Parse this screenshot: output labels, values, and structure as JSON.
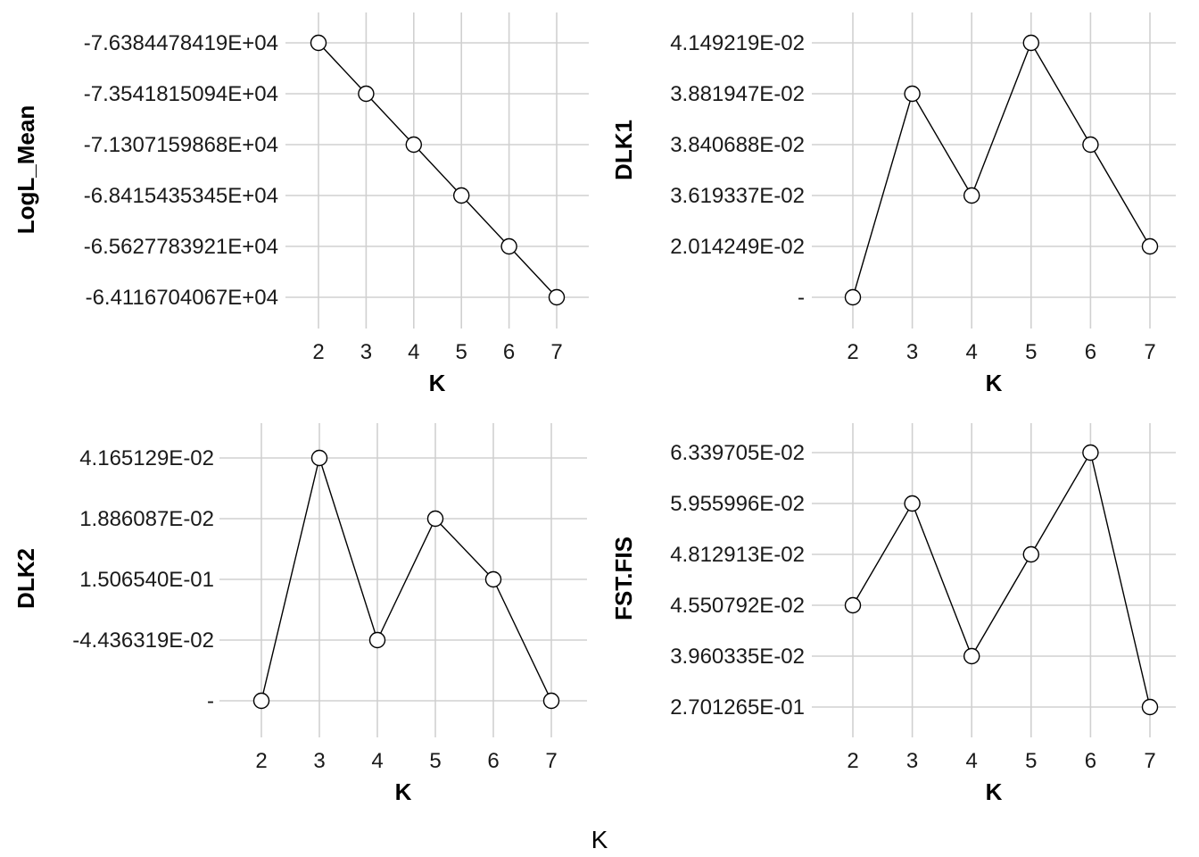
{
  "global_xlabel": "K",
  "chart_data": [
    {
      "type": "line",
      "xlabel": "K",
      "ylabel": "LogL_Mean",
      "x": [
        2,
        3,
        4,
        5,
        6,
        7
      ],
      "y_ticks": [
        "-7.6384478419E+04",
        "-7.3541815094E+04",
        "-7.1307159868E+04",
        "-6.8415435345E+04",
        "-6.5627783921E+04",
        "-6.4116704067E+04"
      ],
      "y_index": [
        0,
        1,
        2,
        3,
        4,
        5
      ]
    },
    {
      "type": "line",
      "xlabel": "K",
      "ylabel": "DLK1",
      "x": [
        2,
        3,
        4,
        5,
        6,
        7
      ],
      "y_ticks": [
        "4.149219E-02",
        "3.881947E-02",
        "3.840688E-02",
        "3.619337E-02",
        "2.014249E-02",
        "-"
      ],
      "y_index": [
        5,
        1,
        3,
        0,
        2,
        4
      ]
    },
    {
      "type": "line",
      "xlabel": "K",
      "ylabel": "DLK2",
      "x": [
        2,
        3,
        4,
        5,
        6,
        7
      ],
      "y_ticks": [
        "4.165129E-02",
        "1.886087E-02",
        "1.506540E-01",
        "-4.436319E-02",
        "-"
      ],
      "y_index": [
        4,
        0,
        3,
        1,
        2,
        4
      ]
    },
    {
      "type": "line",
      "xlabel": "K",
      "ylabel": "FST.FIS",
      "x": [
        2,
        3,
        4,
        5,
        6,
        7
      ],
      "y_ticks": [
        "6.339705E-02",
        "5.955996E-02",
        "4.812913E-02",
        "4.550792E-02",
        "3.960335E-02",
        "2.701265E-01"
      ],
      "y_index": [
        3,
        1,
        4,
        2,
        0,
        5
      ]
    }
  ]
}
